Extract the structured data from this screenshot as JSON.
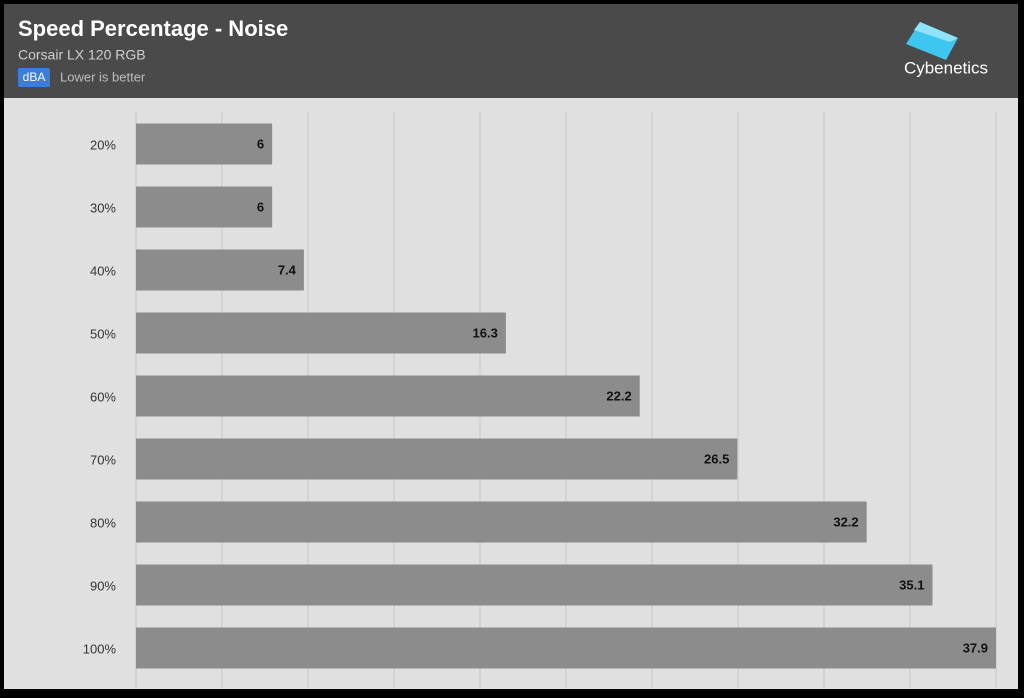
{
  "chart_data": {
    "type": "hbar",
    "title": "Speed Percentage - Noise",
    "subtitle": "Corsair LX 120 RGB",
    "unit": "dBA",
    "note": "Lower is better",
    "logo": "Cybenetics",
    "categories": [
      "20%",
      "30%",
      "40%",
      "50%",
      "60%",
      "70%",
      "80%",
      "90%",
      "100%"
    ],
    "values": [
      6,
      6,
      7.4,
      16.3,
      22.2,
      26.5,
      32.2,
      35.1,
      37.9
    ],
    "color": "#8c8c8c",
    "xlim": [
      0,
      37.9
    ],
    "xticks": [
      0,
      3.79,
      7.58,
      11.37,
      15.16,
      18.95,
      22.74,
      26.53,
      30.32,
      34.11,
      37.9
    ],
    "grid": true
  }
}
